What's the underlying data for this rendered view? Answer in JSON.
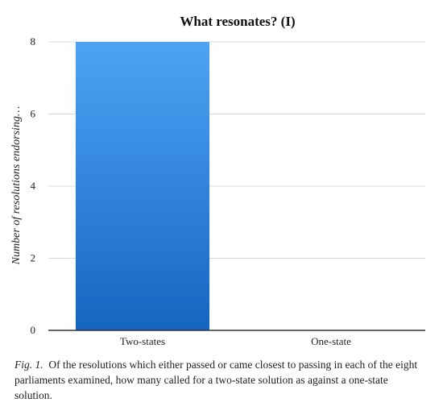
{
  "chart_data": {
    "type": "bar",
    "title": "What resonates? (I)",
    "xlabel": "",
    "ylabel": "Number of resolutions endorsing…",
    "categories": [
      "Two-states",
      "One-state"
    ],
    "values": [
      8,
      0
    ],
    "ylim": [
      0,
      8
    ],
    "yticks": [
      "0",
      "2",
      "4",
      "6",
      "8"
    ],
    "grid": true,
    "legend": "none",
    "colors": {
      "bar_top": "#4da3f5",
      "bar_bottom": "#1565c0",
      "grid": "#d9d9d9",
      "axis": "#333333"
    }
  },
  "caption": {
    "label": "Fig. 1.",
    "text": "Of the resolutions which either passed or came closest to passing in each of the eight parliaments examined, how many called for a two-state solution as against a one-state solution."
  }
}
